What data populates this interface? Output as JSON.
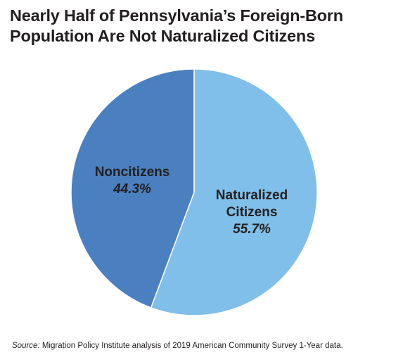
{
  "title_lines": [
    "Nearly Half of Pennsylvania’s Foreign-Born",
    "Population Are Not Naturalized Citizens"
  ],
  "chart_data": {
    "type": "pie",
    "title": "Nearly Half of Pennsylvania’s Foreign-Born Population Are Not Naturalized Citizens",
    "slices": [
      {
        "label_lines": [
          "Naturalized",
          "Citizens"
        ],
        "value": 55.7,
        "value_label": "55.7%",
        "color": "#80bfea"
      },
      {
        "label_lines": [
          "Noncitizens"
        ],
        "value": 44.3,
        "value_label": "44.3%",
        "color": "#4a80c0"
      }
    ],
    "start_angle_deg": 0,
    "direction": "clockwise",
    "slice_border_color": "#ffffff"
  },
  "source": {
    "label": "Source:",
    "text": " Migration Policy Institute analysis of 2019 American Community Survey 1-Year data."
  }
}
